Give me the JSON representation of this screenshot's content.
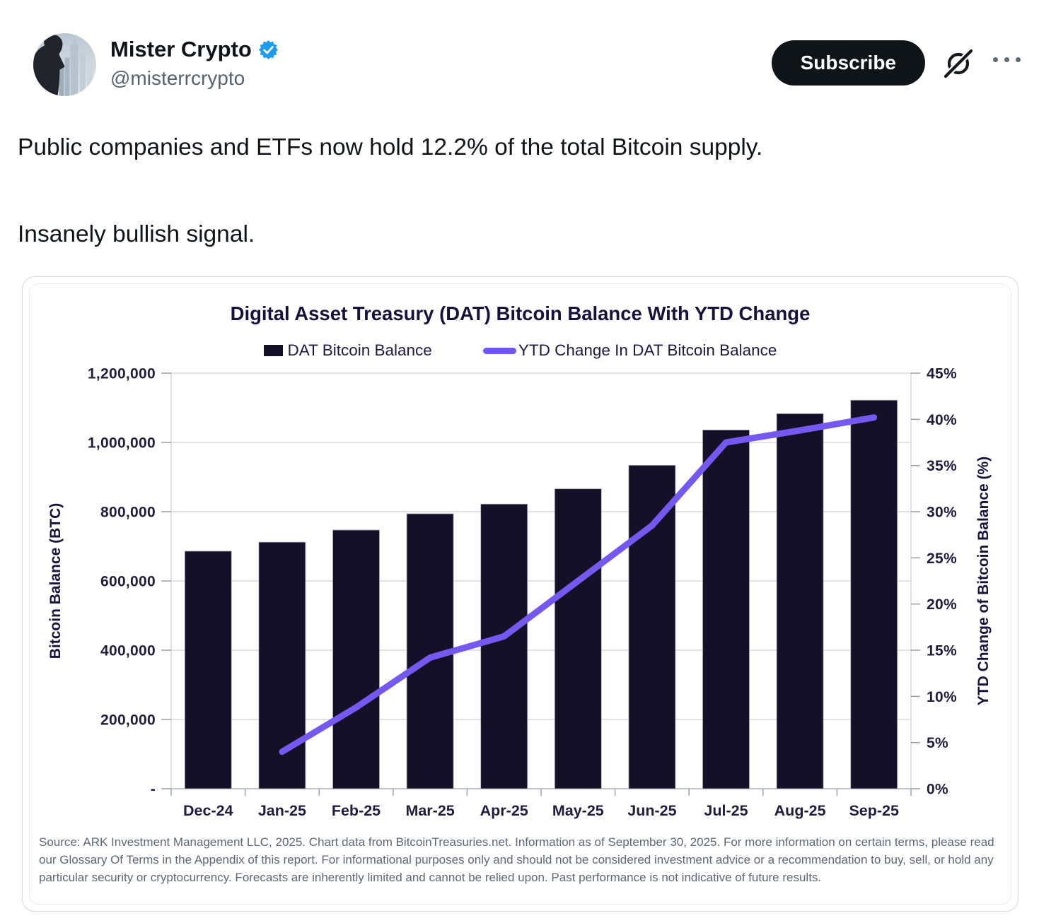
{
  "header": {
    "display_name": "Mister Crypto",
    "handle": "@misterrcrypto",
    "subscribe_label": "Subscribe",
    "verified_color": "#1d9bf0"
  },
  "tweet": {
    "line1": "Public companies and ETFs now hold 12.2% of the total Bitcoin supply.",
    "line2": "Insanely bullish signal."
  },
  "chart_card": {
    "title": "Digital Asset Treasury (DAT) Bitcoin Balance With YTD Change",
    "legend": [
      {
        "label": "DAT Bitcoin Balance",
        "type": "square",
        "color": "#131028"
      },
      {
        "label": "YTD Change In DAT Bitcoin Balance",
        "type": "line",
        "color": "#7155ef"
      }
    ],
    "source": "Source: ARK Investment Management LLC, 2025. Chart data from BitcoinTreasuries.net. Information as of September 30, 2025. For more information on certain terms, please read our Glossary Of Terms in the Appendix of this report. For informational purposes only and should not be considered investment advice or a recommendation to buy, sell, or hold any particular security or cryptocurrency. Forecasts are inherently limited and cannot be relied upon. Past performance is not indicative of future results."
  },
  "chart_data": {
    "type": "bar",
    "title": "Digital Asset Treasury (DAT) Bitcoin Balance With YTD Change",
    "categories": [
      "Dec-24",
      "Jan-25",
      "Feb-25",
      "Mar-25",
      "Apr-25",
      "May-25",
      "Jun-25",
      "Jul-25",
      "Aug-25",
      "Sep-25"
    ],
    "series": [
      {
        "name": "DAT Bitcoin Balance",
        "type": "bar",
        "axis": "left",
        "color": "#131028",
        "values": [
          686000,
          712000,
          747000,
          794000,
          822000,
          866000,
          934000,
          1036000,
          1083000,
          1122000
        ]
      },
      {
        "name": "YTD Change In DAT Bitcoin Balance",
        "type": "line",
        "axis": "right",
        "color": "#7458f0",
        "values": [
          null,
          4.0,
          8.8,
          14.2,
          16.5,
          22.5,
          28.5,
          37.5,
          38.8,
          40.2
        ]
      }
    ],
    "left_axis": {
      "label": "Bitcoin Balance (BTC)",
      "min": 0,
      "max": 1200000,
      "ticks": [
        "1,200,000",
        "1,000,000",
        "800,000",
        "600,000",
        "400,000",
        "200,000",
        "-"
      ]
    },
    "right_axis": {
      "label": "YTD Change of Bitcoin Balance (%)",
      "min": 0,
      "max": 45,
      "ticks": [
        "45%",
        "40%",
        "35%",
        "30%",
        "25%",
        "20%",
        "15%",
        "10%",
        "5%",
        "0%"
      ]
    },
    "x_label_row": "months",
    "grid": true,
    "legend_position": "top"
  }
}
